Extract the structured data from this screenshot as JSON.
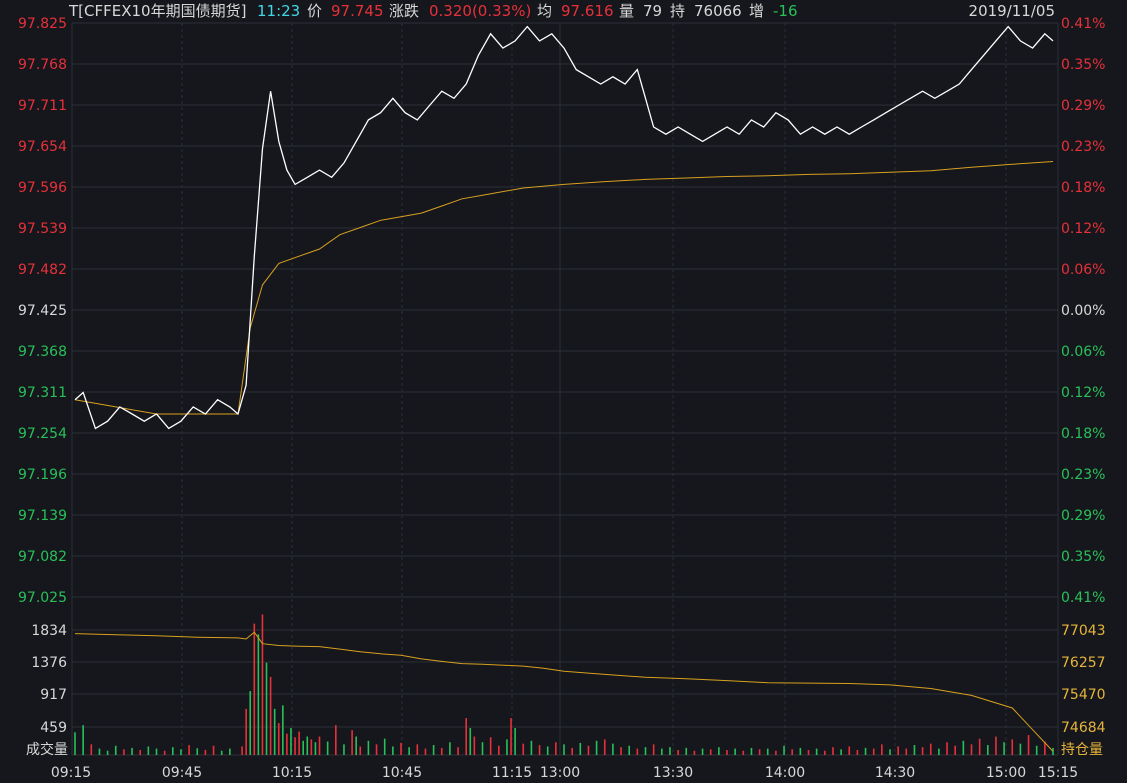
{
  "header": {
    "symbol": "T[CFFEX10年期国债期货]",
    "time": "11:23",
    "price_label": "价",
    "price": "97.745",
    "change_label": "涨跌",
    "change": "0.320(0.33%)",
    "avg_label": "均",
    "avg": "97.616",
    "vol_label": "量",
    "vol": "79",
    "oi_label": "持",
    "oi": "76066",
    "oi_change_label": "增",
    "oi_change": "-16",
    "date": "2019/11/05"
  },
  "colors": {
    "background": "#15171c",
    "grid": "#2b2f36",
    "up": "#e8303a",
    "down": "#29c05a",
    "price_line": "#ffffff",
    "avg_line": "#d9a020",
    "oi_line": "#d9a020",
    "neutral_text": "#d8d8d8",
    "cyan_text": "#40d8e8",
    "yellow_text": "#e6b43c"
  },
  "chart_data": {
    "type": "line",
    "left_price_ticks": [
      "97.825",
      "97.768",
      "97.711",
      "97.654",
      "97.596",
      "97.539",
      "97.482",
      "97.425",
      "97.368",
      "97.311",
      "97.254",
      "97.196",
      "97.139",
      "97.082",
      "97.025"
    ],
    "right_pct_ticks": [
      "0.41%",
      "0.35%",
      "0.29%",
      "0.23%",
      "0.18%",
      "0.12%",
      "0.06%",
      "0.00%",
      "0.06%",
      "0.12%",
      "0.18%",
      "0.23%",
      "0.29%",
      "0.35%",
      "0.41%"
    ],
    "price_ylim": [
      97.025,
      97.825
    ],
    "prev_close": 97.425,
    "volume_ticks": [
      "1834",
      "1376",
      "917",
      "459"
    ],
    "volume_label": "成交量",
    "oi_ticks": [
      "77043",
      "76257",
      "75470",
      "74684"
    ],
    "oi_label": "持仓量",
    "oi_ylim": [
      73900,
      77830
    ],
    "x_ticks": [
      "09:15",
      "09:45",
      "10:15",
      "10:45",
      "11:15",
      "13:00",
      "13:30",
      "14:00",
      "14:30",
      "15:00",
      "15:15"
    ],
    "price": [
      [
        0,
        97.3
      ],
      [
        2,
        97.31
      ],
      [
        5,
        97.26
      ],
      [
        8,
        97.27
      ],
      [
        11,
        97.29
      ],
      [
        14,
        97.28
      ],
      [
        17,
        97.27
      ],
      [
        20,
        97.28
      ],
      [
        23,
        97.26
      ],
      [
        26,
        97.27
      ],
      [
        29,
        97.29
      ],
      [
        32,
        97.28
      ],
      [
        35,
        97.3
      ],
      [
        38,
        97.29
      ],
      [
        40,
        97.28
      ],
      [
        42,
        97.32
      ],
      [
        44,
        97.5
      ],
      [
        46,
        97.65
      ],
      [
        48,
        97.73
      ],
      [
        50,
        97.66
      ],
      [
        52,
        97.62
      ],
      [
        54,
        97.6
      ],
      [
        57,
        97.61
      ],
      [
        60,
        97.62
      ],
      [
        63,
        97.61
      ],
      [
        66,
        97.63
      ],
      [
        69,
        97.66
      ],
      [
        72,
        97.69
      ],
      [
        75,
        97.7
      ],
      [
        78,
        97.72
      ],
      [
        81,
        97.7
      ],
      [
        84,
        97.69
      ],
      [
        87,
        97.71
      ],
      [
        90,
        97.73
      ],
      [
        93,
        97.72
      ],
      [
        96,
        97.74
      ],
      [
        99,
        97.78
      ],
      [
        102,
        97.81
      ],
      [
        105,
        97.79
      ],
      [
        108,
        97.8
      ],
      [
        111,
        97.82
      ],
      [
        114,
        97.8
      ],
      [
        117,
        97.81
      ],
      [
        120,
        97.79
      ],
      [
        123,
        97.76
      ],
      [
        126,
        97.75
      ],
      [
        129,
        97.74
      ],
      [
        132,
        97.75
      ],
      [
        135,
        97.74
      ],
      [
        138,
        97.76
      ],
      [
        140,
        97.72
      ],
      [
        142,
        97.68
      ],
      [
        145,
        97.67
      ],
      [
        148,
        97.68
      ],
      [
        151,
        97.67
      ],
      [
        154,
        97.66
      ],
      [
        157,
        97.67
      ],
      [
        160,
        97.68
      ],
      [
        163,
        97.67
      ],
      [
        166,
        97.69
      ],
      [
        169,
        97.68
      ],
      [
        172,
        97.7
      ],
      [
        175,
        97.69
      ],
      [
        178,
        97.67
      ],
      [
        181,
        97.68
      ],
      [
        184,
        97.67
      ],
      [
        187,
        97.68
      ],
      [
        190,
        97.67
      ],
      [
        193,
        97.68
      ],
      [
        196,
        97.69
      ],
      [
        199,
        97.7
      ],
      [
        202,
        97.71
      ],
      [
        205,
        97.72
      ],
      [
        208,
        97.73
      ],
      [
        211,
        97.72
      ],
      [
        214,
        97.73
      ],
      [
        217,
        97.74
      ],
      [
        220,
        97.76
      ],
      [
        223,
        97.78
      ],
      [
        226,
        97.8
      ],
      [
        229,
        97.82
      ],
      [
        232,
        97.8
      ],
      [
        235,
        97.79
      ],
      [
        238,
        97.81
      ],
      [
        240,
        97.8
      ]
    ],
    "avg": [
      [
        0,
        97.3
      ],
      [
        10,
        97.29
      ],
      [
        20,
        97.28
      ],
      [
        30,
        97.28
      ],
      [
        40,
        97.28
      ],
      [
        43,
        97.4
      ],
      [
        46,
        97.46
      ],
      [
        50,
        97.49
      ],
      [
        55,
        97.5
      ],
      [
        60,
        97.51
      ],
      [
        65,
        97.53
      ],
      [
        70,
        97.54
      ],
      [
        75,
        97.55
      ],
      [
        80,
        97.555
      ],
      [
        85,
        97.56
      ],
      [
        90,
        97.57
      ],
      [
        95,
        97.58
      ],
      [
        100,
        97.585
      ],
      [
        110,
        97.595
      ],
      [
        120,
        97.6
      ],
      [
        130,
        97.604
      ],
      [
        140,
        97.607
      ],
      [
        150,
        97.609
      ],
      [
        160,
        97.611
      ],
      [
        170,
        97.612
      ],
      [
        180,
        97.614
      ],
      [
        190,
        97.615
      ],
      [
        200,
        97.617
      ],
      [
        210,
        97.619
      ],
      [
        220,
        97.624
      ],
      [
        230,
        97.628
      ],
      [
        240,
        97.632
      ]
    ],
    "oi": [
      [
        0,
        77260
      ],
      [
        10,
        77230
      ],
      [
        20,
        77200
      ],
      [
        30,
        77160
      ],
      [
        40,
        77140
      ],
      [
        42,
        77110
      ],
      [
        44,
        77300
      ],
      [
        46,
        76980
      ],
      [
        50,
        76930
      ],
      [
        55,
        76910
      ],
      [
        60,
        76900
      ],
      [
        65,
        76830
      ],
      [
        70,
        76760
      ],
      [
        75,
        76700
      ],
      [
        80,
        76660
      ],
      [
        85,
        76560
      ],
      [
        90,
        76490
      ],
      [
        95,
        76430
      ],
      [
        100,
        76410
      ],
      [
        110,
        76360
      ],
      [
        115,
        76300
      ],
      [
        120,
        76220
      ],
      [
        130,
        76130
      ],
      [
        140,
        76050
      ],
      [
        150,
        76010
      ],
      [
        160,
        75960
      ],
      [
        170,
        75900
      ],
      [
        180,
        75890
      ],
      [
        190,
        75880
      ],
      [
        200,
        75840
      ],
      [
        210,
        75740
      ],
      [
        220,
        75550
      ],
      [
        230,
        75200
      ],
      [
        235,
        74600
      ],
      [
        240,
        74000
      ]
    ],
    "volume_max": 2000,
    "volume": [
      [
        0,
        320,
        "d"
      ],
      [
        2,
        420,
        "d"
      ],
      [
        4,
        150,
        "u"
      ],
      [
        6,
        90,
        "d"
      ],
      [
        8,
        60,
        "d"
      ],
      [
        10,
        130,
        "d"
      ],
      [
        12,
        80,
        "u"
      ],
      [
        14,
        100,
        "d"
      ],
      [
        16,
        70,
        "u"
      ],
      [
        18,
        120,
        "d"
      ],
      [
        20,
        90,
        "d"
      ],
      [
        22,
        60,
        "u"
      ],
      [
        24,
        110,
        "d"
      ],
      [
        26,
        80,
        "d"
      ],
      [
        28,
        140,
        "u"
      ],
      [
        30,
        95,
        "d"
      ],
      [
        32,
        70,
        "u"
      ],
      [
        34,
        130,
        "u"
      ],
      [
        36,
        60,
        "d"
      ],
      [
        38,
        90,
        "d"
      ],
      [
        41,
        120,
        "u"
      ],
      [
        42,
        650,
        "u"
      ],
      [
        43,
        900,
        "d"
      ],
      [
        44,
        1850,
        "u"
      ],
      [
        45,
        1700,
        "d"
      ],
      [
        46,
        1980,
        "u"
      ],
      [
        47,
        1300,
        "d"
      ],
      [
        48,
        1100,
        "u"
      ],
      [
        49,
        650,
        "d"
      ],
      [
        50,
        450,
        "u"
      ],
      [
        51,
        700,
        "d"
      ],
      [
        52,
        300,
        "u"
      ],
      [
        53,
        380,
        "d"
      ],
      [
        54,
        250,
        "u"
      ],
      [
        55,
        330,
        "u"
      ],
      [
        56,
        200,
        "d"
      ],
      [
        57,
        260,
        "d"
      ],
      [
        58,
        220,
        "u"
      ],
      [
        59,
        180,
        "d"
      ],
      [
        60,
        260,
        "u"
      ],
      [
        62,
        190,
        "d"
      ],
      [
        64,
        420,
        "u"
      ],
      [
        66,
        150,
        "d"
      ],
      [
        68,
        350,
        "u"
      ],
      [
        69,
        260,
        "d"
      ],
      [
        70,
        120,
        "u"
      ],
      [
        72,
        200,
        "d"
      ],
      [
        74,
        150,
        "u"
      ],
      [
        76,
        230,
        "d"
      ],
      [
        78,
        120,
        "d"
      ],
      [
        80,
        170,
        "u"
      ],
      [
        82,
        110,
        "d"
      ],
      [
        84,
        150,
        "u"
      ],
      [
        86,
        90,
        "u"
      ],
      [
        88,
        140,
        "d"
      ],
      [
        90,
        100,
        "u"
      ],
      [
        92,
        180,
        "d"
      ],
      [
        94,
        110,
        "u"
      ],
      [
        96,
        520,
        "u"
      ],
      [
        97,
        380,
        "d"
      ],
      [
        98,
        260,
        "u"
      ],
      [
        100,
        180,
        "d"
      ],
      [
        102,
        250,
        "u"
      ],
      [
        104,
        130,
        "u"
      ],
      [
        106,
        220,
        "d"
      ],
      [
        107,
        520,
        "u"
      ],
      [
        108,
        380,
        "d"
      ],
      [
        110,
        160,
        "u"
      ],
      [
        112,
        200,
        "d"
      ],
      [
        114,
        140,
        "u"
      ],
      [
        116,
        120,
        "d"
      ],
      [
        118,
        180,
        "u"
      ],
      [
        120,
        150,
        "d"
      ],
      [
        122,
        100,
        "u"
      ],
      [
        124,
        170,
        "d"
      ],
      [
        126,
        130,
        "u"
      ],
      [
        128,
        200,
        "d"
      ],
      [
        130,
        220,
        "u"
      ],
      [
        132,
        160,
        "d"
      ],
      [
        134,
        110,
        "u"
      ],
      [
        136,
        130,
        "d"
      ],
      [
        138,
        90,
        "u"
      ],
      [
        140,
        110,
        "d"
      ],
      [
        142,
        150,
        "u"
      ],
      [
        144,
        90,
        "d"
      ],
      [
        146,
        110,
        "d"
      ],
      [
        148,
        70,
        "u"
      ],
      [
        150,
        100,
        "d"
      ],
      [
        152,
        60,
        "u"
      ],
      [
        154,
        90,
        "d"
      ],
      [
        156,
        80,
        "u"
      ],
      [
        158,
        110,
        "d"
      ],
      [
        160,
        70,
        "u"
      ],
      [
        162,
        90,
        "d"
      ],
      [
        164,
        60,
        "u"
      ],
      [
        166,
        100,
        "d"
      ],
      [
        168,
        80,
        "u"
      ],
      [
        170,
        90,
        "d"
      ],
      [
        172,
        60,
        "u"
      ],
      [
        174,
        130,
        "d"
      ],
      [
        176,
        80,
        "u"
      ],
      [
        178,
        100,
        "d"
      ],
      [
        180,
        70,
        "u"
      ],
      [
        182,
        90,
        "d"
      ],
      [
        184,
        60,
        "u"
      ],
      [
        186,
        110,
        "u"
      ],
      [
        188,
        80,
        "d"
      ],
      [
        190,
        120,
        "u"
      ],
      [
        192,
        70,
        "u"
      ],
      [
        194,
        100,
        "d"
      ],
      [
        196,
        90,
        "u"
      ],
      [
        198,
        150,
        "u"
      ],
      [
        200,
        80,
        "d"
      ],
      [
        202,
        120,
        "u"
      ],
      [
        204,
        90,
        "u"
      ],
      [
        206,
        140,
        "d"
      ],
      [
        208,
        110,
        "u"
      ],
      [
        210,
        160,
        "u"
      ],
      [
        212,
        90,
        "d"
      ],
      [
        214,
        180,
        "u"
      ],
      [
        216,
        130,
        "u"
      ],
      [
        218,
        200,
        "d"
      ],
      [
        220,
        150,
        "u"
      ],
      [
        222,
        230,
        "u"
      ],
      [
        224,
        140,
        "d"
      ],
      [
        226,
        260,
        "u"
      ],
      [
        228,
        180,
        "d"
      ],
      [
        230,
        220,
        "u"
      ],
      [
        232,
        160,
        "d"
      ],
      [
        234,
        280,
        "u"
      ],
      [
        236,
        130,
        "d"
      ],
      [
        238,
        190,
        "u"
      ],
      [
        240,
        100,
        "d"
      ]
    ]
  }
}
